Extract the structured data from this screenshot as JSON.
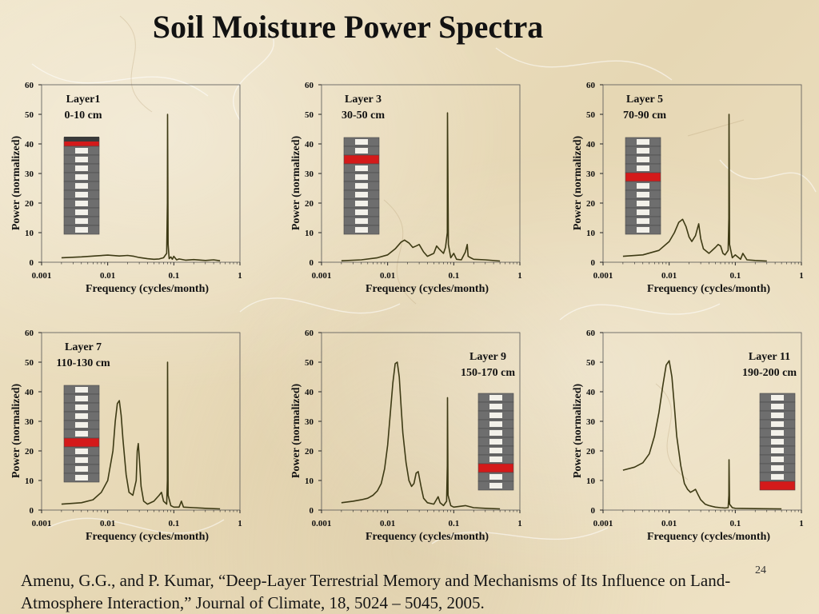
{
  "title": "Soil Moisture Power Spectra",
  "citation": "Amenu, G.G., and P. Kumar, “Deep-Layer Terrestrial Memory and Mechanisms of Its Influence on Land-Atmosphere Interaction,” Journal of Climate, 18, 5024 – 5045, 2005.",
  "slide_number": "24",
  "colors": {
    "line": "#3d3a14",
    "highlight": "#d41a1a",
    "block": "#6e6e6e",
    "axis": "#222222"
  },
  "chart_data": [
    {
      "type": "line",
      "layer": "Layer1",
      "depth": "0-10 cm",
      "xlabel": "Frequency (cycles/month)",
      "ylabel": "Power  (normalized)",
      "xscale": "log",
      "xlim": [
        0.001,
        1
      ],
      "ylim": [
        0,
        60
      ],
      "x_ticks": [
        "0.001",
        "0.01",
        "0.1",
        "1"
      ],
      "y_ticks": [
        "0",
        "10",
        "20",
        "30",
        "40",
        "50",
        "60"
      ],
      "highlight_layer": 1,
      "column_side": "left",
      "x": [
        0.002,
        0.004,
        0.007,
        0.01,
        0.015,
        0.02,
        0.025,
        0.03,
        0.04,
        0.05,
        0.06,
        0.07,
        0.078,
        0.08,
        0.0805,
        0.082,
        0.085,
        0.09,
        0.095,
        0.1,
        0.11,
        0.12,
        0.15,
        0.2,
        0.3,
        0.4,
        0.5
      ],
      "y": [
        1.5,
        1.8,
        2.2,
        2.4,
        2.1,
        2.3,
        2.0,
        1.6,
        1.2,
        1.0,
        1.1,
        1.5,
        3.0,
        20.0,
        50.0,
        6.0,
        1.2,
        1.8,
        1.0,
        2.0,
        0.8,
        1.1,
        0.7,
        0.9,
        0.6,
        0.8,
        0.5
      ]
    },
    {
      "type": "line",
      "layer": "Layer 3",
      "depth": "30-50 cm",
      "xlabel": "Frequency (cycles/month)",
      "ylabel": "Power  (normalized)",
      "xscale": "log",
      "xlim": [
        0.001,
        1
      ],
      "ylim": [
        0,
        60
      ],
      "x_ticks": [
        "0.001",
        "0.01",
        "0.1",
        "1"
      ],
      "y_ticks": [
        "0",
        "10",
        "20",
        "30",
        "40",
        "50",
        "60"
      ],
      "highlight_layer": 3,
      "column_side": "left",
      "x": [
        0.002,
        0.004,
        0.007,
        0.01,
        0.013,
        0.016,
        0.018,
        0.021,
        0.024,
        0.027,
        0.03,
        0.035,
        0.04,
        0.05,
        0.055,
        0.06,
        0.07,
        0.075,
        0.08,
        0.0805,
        0.083,
        0.09,
        0.1,
        0.11,
        0.13,
        0.15,
        0.16,
        0.165,
        0.18,
        0.2,
        0.3,
        0.5
      ],
      "y": [
        0.5,
        0.8,
        1.5,
        2.5,
        4.5,
        6.8,
        7.5,
        6.5,
        5.0,
        5.5,
        6.0,
        3.5,
        2.0,
        3.0,
        5.5,
        4.5,
        3.0,
        5.0,
        10.0,
        50.5,
        6.0,
        1.5,
        3.0,
        1.0,
        0.8,
        3.5,
        6.0,
        2.0,
        1.5,
        1.0,
        0.8,
        0.4
      ]
    },
    {
      "type": "line",
      "layer": "Layer 5",
      "depth": "70-90 cm",
      "xlabel": "Frequency (cycles/month)",
      "ylabel": "Power  (normalized)",
      "xscale": "log",
      "xlim": [
        0.001,
        1
      ],
      "ylim": [
        0,
        60
      ],
      "x_ticks": [
        "0.001",
        "0.01",
        "0.1",
        "1"
      ],
      "y_ticks": [
        "0",
        "10",
        "20",
        "30",
        "40",
        "50",
        "60"
      ],
      "highlight_layer": 5,
      "column_side": "left",
      "x": [
        0.002,
        0.004,
        0.007,
        0.01,
        0.012,
        0.014,
        0.016,
        0.018,
        0.02,
        0.022,
        0.025,
        0.028,
        0.03,
        0.033,
        0.04,
        0.05,
        0.055,
        0.06,
        0.065,
        0.07,
        0.078,
        0.08,
        0.0805,
        0.082,
        0.09,
        0.1,
        0.12,
        0.13,
        0.15,
        0.2,
        0.3
      ],
      "y": [
        2.0,
        2.5,
        4.0,
        7.0,
        10.0,
        13.5,
        14.5,
        12.0,
        8.5,
        7.0,
        9.0,
        13.0,
        8.0,
        4.5,
        3.0,
        5.0,
        6.0,
        5.5,
        3.0,
        2.5,
        4.0,
        15.0,
        50.0,
        6.0,
        1.5,
        2.5,
        1.0,
        3.0,
        0.8,
        0.6,
        0.4
      ]
    },
    {
      "type": "line",
      "layer": "Layer 7",
      "depth": "110-130 cm",
      "xlabel": "Frequency (cycles/month)",
      "ylabel": "Power  (normalized)",
      "xscale": "log",
      "xlim": [
        0.001,
        1
      ],
      "ylim": [
        0,
        60
      ],
      "x_ticks": [
        "0.001",
        "0.01",
        "0.1",
        "1"
      ],
      "y_ticks": [
        "0",
        "10",
        "20",
        "30",
        "40",
        "50",
        "60"
      ],
      "highlight_layer": 7,
      "column_side": "left",
      "x": [
        0.002,
        0.004,
        0.006,
        0.008,
        0.01,
        0.012,
        0.013,
        0.014,
        0.015,
        0.016,
        0.017,
        0.019,
        0.021,
        0.024,
        0.027,
        0.028,
        0.029,
        0.03,
        0.032,
        0.035,
        0.04,
        0.05,
        0.06,
        0.065,
        0.07,
        0.078,
        0.08,
        0.0805,
        0.082,
        0.09,
        0.1,
        0.12,
        0.13,
        0.14,
        0.2,
        0.3,
        0.5
      ],
      "y": [
        2.0,
        2.5,
        3.5,
        6.0,
        10.0,
        20.0,
        30.0,
        36.0,
        37.0,
        32.0,
        24.0,
        12.0,
        6.0,
        5.0,
        10.0,
        20.0,
        22.5,
        18.0,
        8.0,
        3.0,
        2.0,
        3.0,
        5.0,
        6.0,
        3.0,
        2.0,
        10.0,
        50.0,
        5.0,
        1.5,
        1.0,
        1.0,
        3.0,
        1.0,
        0.8,
        0.6,
        0.4
      ]
    },
    {
      "type": "line",
      "layer": "Layer 9",
      "depth": "150-170 cm",
      "xlabel": "Frequency (cycles/month)",
      "ylabel": "Power  (normalized)",
      "xscale": "log",
      "xlim": [
        0.001,
        1
      ],
      "ylim": [
        0,
        60
      ],
      "x_ticks": [
        "0.001",
        "0.01",
        "0.1",
        "1"
      ],
      "y_ticks": [
        "0",
        "10",
        "20",
        "30",
        "40",
        "50",
        "60"
      ],
      "highlight_layer": 9,
      "column_side": "right",
      "x": [
        0.002,
        0.003,
        0.004,
        0.005,
        0.006,
        0.007,
        0.008,
        0.009,
        0.01,
        0.011,
        0.012,
        0.013,
        0.014,
        0.015,
        0.016,
        0.017,
        0.019,
        0.021,
        0.023,
        0.025,
        0.027,
        0.029,
        0.032,
        0.035,
        0.04,
        0.05,
        0.058,
        0.062,
        0.07,
        0.078,
        0.08,
        0.0805,
        0.082,
        0.09,
        0.1,
        0.15,
        0.2,
        0.3,
        0.5
      ],
      "y": [
        2.5,
        3.0,
        3.5,
        4.0,
        5.0,
        6.5,
        9.0,
        14.0,
        22.0,
        33.0,
        43.0,
        49.5,
        50.0,
        45.0,
        35.0,
        26.0,
        16.0,
        10.0,
        8.0,
        9.0,
        12.5,
        13.0,
        8.0,
        4.0,
        2.5,
        2.0,
        4.5,
        2.5,
        1.5,
        3.0,
        15.0,
        38.0,
        5.0,
        1.5,
        1.0,
        1.5,
        0.8,
        0.6,
        0.4
      ]
    },
    {
      "type": "line",
      "layer": "Layer 11",
      "depth": "190-200 cm",
      "xlabel": "Frequency (cycles/month)",
      "ylabel": "Power  (normalized)",
      "xscale": "log",
      "xlim": [
        0.001,
        1
      ],
      "ylim": [
        0,
        60
      ],
      "x_ticks": [
        "0.001",
        "0.01",
        "0.1",
        "1"
      ],
      "y_ticks": [
        "0",
        "10",
        "20",
        "30",
        "40",
        "50",
        "60"
      ],
      "highlight_layer": 11,
      "column_side": "right",
      "x": [
        0.002,
        0.003,
        0.004,
        0.005,
        0.006,
        0.007,
        0.008,
        0.009,
        0.01,
        0.011,
        0.012,
        0.013,
        0.015,
        0.017,
        0.019,
        0.021,
        0.023,
        0.025,
        0.027,
        0.03,
        0.035,
        0.04,
        0.05,
        0.06,
        0.07,
        0.078,
        0.08,
        0.0805,
        0.082,
        0.09,
        0.1,
        0.2,
        0.5
      ],
      "y": [
        13.5,
        14.5,
        16.0,
        19.0,
        25.0,
        33.0,
        42.0,
        49.0,
        50.5,
        45.0,
        35.0,
        25.0,
        15.0,
        9.0,
        7.0,
        6.0,
        6.5,
        7.0,
        5.5,
        3.5,
        2.0,
        1.5,
        1.0,
        0.8,
        0.7,
        0.8,
        5.0,
        17.0,
        2.0,
        0.8,
        0.6,
        0.5,
        0.4
      ]
    }
  ]
}
